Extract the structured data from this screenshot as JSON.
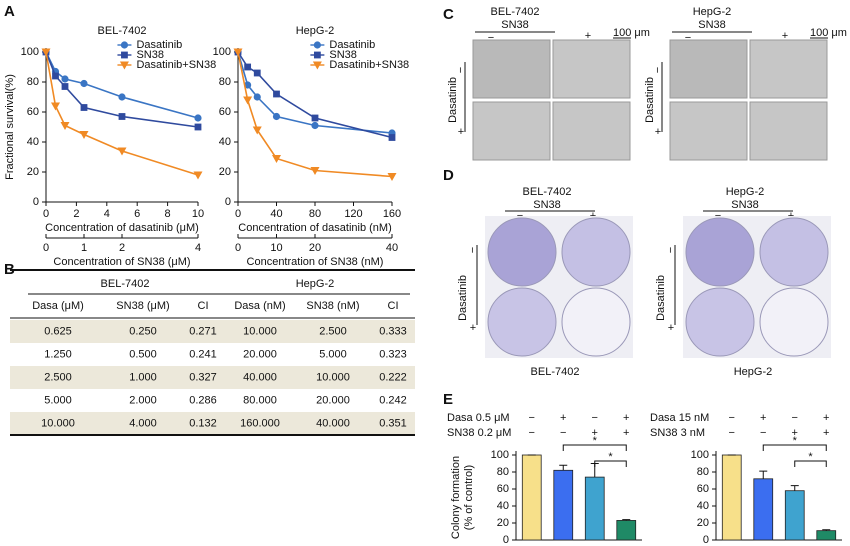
{
  "panel_labels": [
    "A",
    "B",
    "C",
    "D",
    "E"
  ],
  "chart_data": [
    {
      "type": "line",
      "title": "BEL-7402",
      "ylabel": "Fractional survival(%)",
      "xlabel": "Concentration of dasatinib (μM)",
      "x2label": "Concentration of SN38 (μM)",
      "x": [
        0,
        0.625,
        1.25,
        2.5,
        5,
        10
      ],
      "series": [
        {
          "name": "Dasatinib",
          "color": "#3a75c4",
          "marker": "circle",
          "values": [
            100,
            87,
            82,
            79,
            70,
            56
          ]
        },
        {
          "name": "SN38",
          "color": "#2f4a9e",
          "marker": "square",
          "values": [
            100,
            84,
            77,
            63,
            57,
            50
          ]
        },
        {
          "name": "Dasatinib+SN38",
          "color": "#f08a24",
          "marker": "triangle",
          "values": [
            100,
            64,
            51,
            45,
            34,
            18
          ]
        }
      ],
      "xlim": [
        0,
        10
      ],
      "xticks": [
        0,
        2,
        4,
        6,
        8,
        10
      ],
      "x2lim": [
        0,
        4
      ],
      "x2ticks": [
        0,
        1,
        2,
        4
      ],
      "ylim": [
        0,
        100
      ],
      "yticks": [
        0,
        20,
        40,
        60,
        80,
        100
      ]
    },
    {
      "type": "line",
      "title": "HepG-2",
      "xlabel": "Concentration of dasatinib (nM)",
      "x2label": "Concentration of SN38 (nM)",
      "x": [
        0,
        10,
        20,
        40,
        80,
        160
      ],
      "series": [
        {
          "name": "Dasatinib",
          "color": "#3a75c4",
          "marker": "circle",
          "values": [
            100,
            78,
            70,
            57,
            51,
            46
          ]
        },
        {
          "name": "SN38",
          "color": "#2f4a9e",
          "marker": "square",
          "values": [
            100,
            90,
            86,
            72,
            56,
            43
          ]
        },
        {
          "name": "Dasatinib+SN38",
          "color": "#f08a24",
          "marker": "triangle",
          "values": [
            100,
            68,
            48,
            29,
            21,
            17
          ]
        }
      ],
      "xlim": [
        0,
        160
      ],
      "xticks": [
        0,
        40,
        80,
        120,
        160
      ],
      "x2lim": [
        0,
        40
      ],
      "x2ticks": [
        0,
        10,
        20,
        40
      ],
      "ylim": [
        0,
        100
      ],
      "yticks": [
        0,
        20,
        40,
        60,
        80,
        100
      ]
    },
    {
      "type": "bar",
      "ylabel": [
        "Colony formation",
        "(% of control)"
      ],
      "conditions": [
        {
          "label": "Dasa 0.5 μM",
          "signs": [
            "−",
            "+",
            "−",
            "+"
          ]
        },
        {
          "label": "SN38 0.2 μM",
          "signs": [
            "−",
            "−",
            "+",
            "+"
          ]
        }
      ],
      "values": [
        100,
        82,
        74,
        23
      ],
      "errors": [
        0,
        6,
        16,
        1
      ],
      "colors": [
        "#f7e08a",
        "#3b6ef0",
        "#3fa3cf",
        "#1f8a66"
      ],
      "significance": [
        {
          "from": 1,
          "to": 3,
          "label": "*"
        },
        {
          "from": 2,
          "to": 3,
          "label": "*"
        }
      ],
      "ylim": [
        0,
        100
      ],
      "yticks": [
        0,
        20,
        40,
        60,
        80,
        100
      ]
    },
    {
      "type": "bar",
      "conditions": [
        {
          "label": "Dasa 15 nM",
          "signs": [
            "−",
            "+",
            "−",
            "+"
          ]
        },
        {
          "label": "SN38 3 nM",
          "signs": [
            "−",
            "−",
            "+",
            "+"
          ]
        }
      ],
      "values": [
        100,
        72,
        58,
        11
      ],
      "errors": [
        0,
        9,
        6,
        1
      ],
      "colors": [
        "#f7e08a",
        "#3b6ef0",
        "#3fa3cf",
        "#1f8a66"
      ],
      "significance": [
        {
          "from": 1,
          "to": 3,
          "label": "*"
        },
        {
          "from": 2,
          "to": 3,
          "label": "*"
        }
      ],
      "ylim": [
        0,
        100
      ],
      "yticks": [
        0,
        20,
        40,
        60,
        80,
        100
      ]
    }
  ],
  "table": {
    "groups": [
      "BEL-7402",
      "HepG-2"
    ],
    "header": [
      "Dasa (μM)",
      "SN38 (μM)",
      "CI",
      "Dasa (nM)",
      "SN38 (nM)",
      "CI"
    ],
    "rows": [
      [
        "0.625",
        "0.250",
        "0.271",
        "10.000",
        "2.500",
        "0.333"
      ],
      [
        "1.250",
        "0.500",
        "0.241",
        "20.000",
        "5.000",
        "0.323"
      ],
      [
        "2.500",
        "1.000",
        "0.327",
        "40.000",
        "10.000",
        "0.222"
      ],
      [
        "5.000",
        "2.000",
        "0.286",
        "80.000",
        "20.000",
        "0.242"
      ],
      [
        "10.000",
        "4.000",
        "0.132",
        "160.000",
        "40.000",
        "0.351"
      ]
    ]
  },
  "panel_c": {
    "groups": [
      {
        "cell_line": "BEL-7402",
        "drug": "SN38",
        "row_drug": "Dasatinib",
        "signs": [
          "−",
          "+"
        ],
        "scale": "100 μm"
      },
      {
        "cell_line": "HepG-2",
        "drug": "SN38",
        "row_drug": "Dasatinib",
        "signs": [
          "−",
          "+"
        ],
        "scale": "100 μm"
      }
    ]
  },
  "panel_d": {
    "groups": [
      {
        "cell_line": "BEL-7402",
        "drug": "SN38",
        "row_drug": "Dasatinib",
        "signs": [
          "−",
          "+"
        ],
        "caption": "BEL-7402"
      },
      {
        "cell_line": "HepG-2",
        "drug": "SN38",
        "row_drug": "Dasatinib",
        "signs": [
          "−",
          "+"
        ],
        "caption": "HepG-2"
      }
    ]
  }
}
